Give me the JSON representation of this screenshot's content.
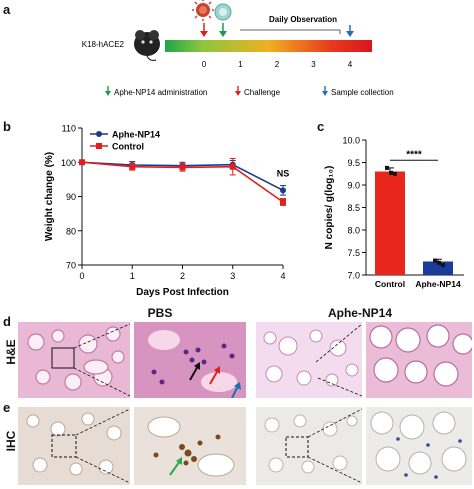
{
  "panels": {
    "a": "a",
    "b": "b",
    "c": "c",
    "d": "d",
    "e": "e"
  },
  "timeline": {
    "mouse_label": "K18-hACE2",
    "daily_label": "Daily Observation",
    "ticks": [
      "0",
      "1",
      "2",
      "3",
      "4"
    ],
    "legend": [
      {
        "label": "Aphe-NP14 administration",
        "color": "#1a9a4a"
      },
      {
        "label": "Challenge",
        "color": "#e0201c"
      },
      {
        "label": "Sample collection",
        "color": "#1f6fb2"
      }
    ],
    "gradient": [
      "#1ea64a",
      "#8cc63e",
      "#f0b020",
      "#e83a1c",
      "#d8161c"
    ]
  },
  "histology": {
    "row_labels": [
      "H&E",
      "IHC"
    ],
    "col_labels": [
      "PBS",
      "Aphe-NP14"
    ]
  },
  "chart_data": [
    {
      "type": "line",
      "title": "",
      "xlabel": "Days Post Infection",
      "ylabel": "Weight change (%)",
      "x": [
        0,
        1,
        2,
        3,
        4
      ],
      "xticks": [
        "0",
        "1",
        "2",
        "3",
        "4"
      ],
      "ylim": [
        70,
        110
      ],
      "yticks": [
        "70",
        "80",
        "90",
        "100",
        "110"
      ],
      "series": [
        {
          "name": "Aphe-NP14",
          "color": "#1a3a8c",
          "marker": "circle",
          "values": [
            100,
            99.2,
            99.0,
            99.3,
            91.8
          ],
          "err": [
            0.6,
            1.0,
            1.0,
            1.2,
            1.4
          ]
        },
        {
          "name": "Control",
          "color": "#e0201c",
          "marker": "square",
          "values": [
            100,
            98.7,
            98.5,
            98.7,
            88.4
          ],
          "err": [
            0.5,
            1.0,
            1.1,
            2.4,
            1.0
          ]
        }
      ],
      "annotation": "NS",
      "legend": "top-left",
      "grid": false
    },
    {
      "type": "bar",
      "title": "",
      "ylabel": "N copies/ g(log₁₀)",
      "categories": [
        "Control",
        "Aphe-NP14"
      ],
      "values": [
        9.3,
        7.3
      ],
      "err": [
        0.08,
        0.05
      ],
      "colors": [
        "#e8261c",
        "#1a3a9c"
      ],
      "points": [
        [
          9.38,
          9.27,
          9.25
        ],
        [
          7.32,
          7.27,
          7.22
        ]
      ],
      "ylim": [
        7.0,
        10.0
      ],
      "yticks": [
        "7.0",
        "7.5",
        "8.0",
        "8.5",
        "9.0",
        "9.5",
        "10.0"
      ],
      "annotation": "****",
      "grid": false
    }
  ]
}
